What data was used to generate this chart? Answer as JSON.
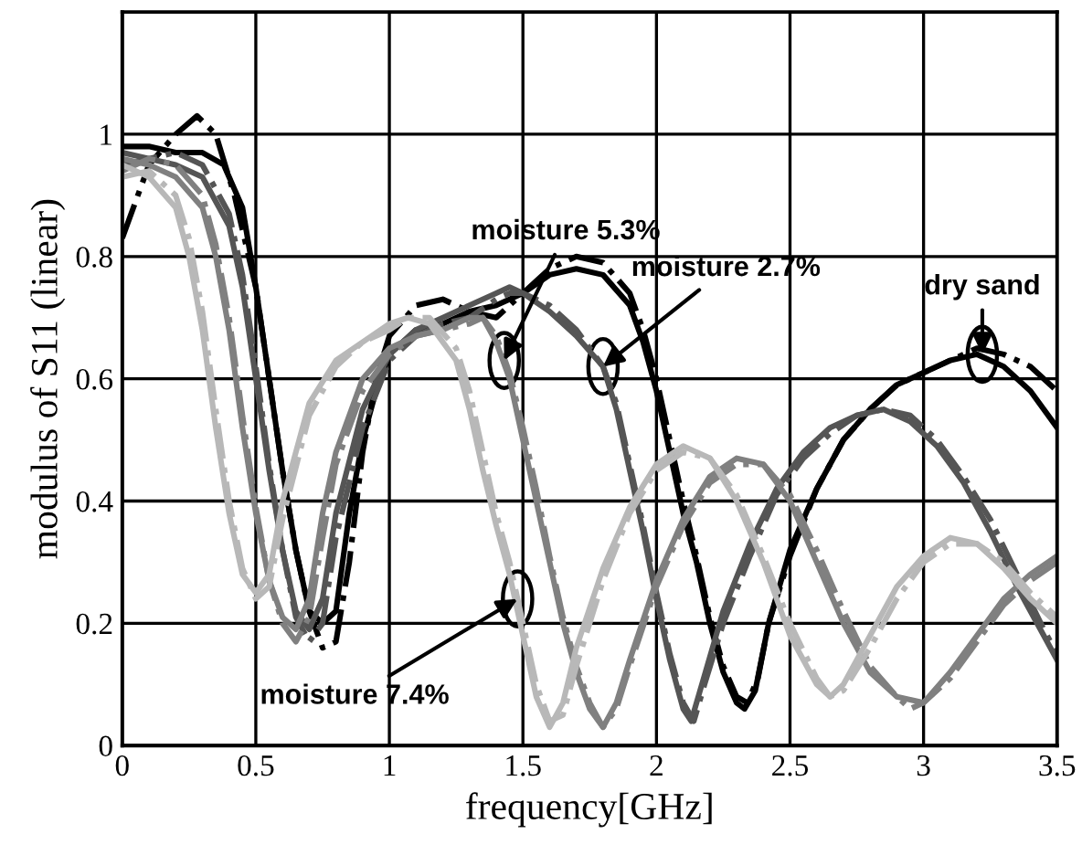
{
  "chart_data": {
    "type": "line",
    "xlabel": "frequency[GHz]",
    "ylabel": "modulus of S11 (linear)",
    "xlim": [
      0,
      3.5
    ],
    "xticks": [
      0,
      0.5,
      1,
      1.5,
      2,
      2.5,
      3,
      3.5
    ],
    "ylim": [
      0,
      1.2
    ],
    "yticks": [
      0,
      0.2,
      0.4,
      0.6,
      0.8,
      1
    ],
    "grid": true,
    "marker": "none",
    "series": [
      {
        "color": "#000000",
        "line_style": "solid",
        "x": [
          0,
          0.1,
          0.2,
          0.3,
          0.38,
          0.45,
          0.5,
          0.55,
          0.6,
          0.65,
          0.7,
          0.75,
          0.8,
          0.85,
          0.9,
          0.95,
          1.0,
          1.1,
          1.2,
          1.3,
          1.4,
          1.5,
          1.6,
          1.7,
          1.8,
          1.9,
          1.95,
          2.0,
          2.05,
          2.1,
          2.15,
          2.2,
          2.25,
          2.3,
          2.33,
          2.37,
          2.42,
          2.5,
          2.6,
          2.7,
          2.8,
          2.9,
          3.0,
          3.1,
          3.2,
          3.3,
          3.4,
          3.5
        ],
        "values": [
          0.98,
          0.98,
          0.97,
          0.97,
          0.95,
          0.88,
          0.75,
          0.6,
          0.45,
          0.32,
          0.22,
          0.2,
          0.22,
          0.38,
          0.5,
          0.58,
          0.64,
          0.68,
          0.69,
          0.71,
          0.72,
          0.74,
          0.77,
          0.78,
          0.77,
          0.72,
          0.66,
          0.58,
          0.48,
          0.38,
          0.3,
          0.2,
          0.12,
          0.07,
          0.06,
          0.09,
          0.2,
          0.32,
          0.42,
          0.5,
          0.55,
          0.59,
          0.61,
          0.63,
          0.64,
          0.62,
          0.58,
          0.52
        ]
      },
      {
        "color": "#000000",
        "line_style": "dashed",
        "x": [
          0,
          0.1,
          0.2,
          0.28,
          0.35,
          0.42,
          0.5,
          0.55,
          0.6,
          0.65,
          0.7,
          0.75,
          0.8,
          0.85,
          0.9,
          0.95,
          1.0,
          1.1,
          1.2,
          1.3,
          1.4,
          1.5,
          1.6,
          1.7,
          1.8,
          1.9,
          1.95,
          2.0,
          2.05,
          2.1,
          2.15,
          2.2,
          2.25,
          2.3,
          2.34,
          2.38,
          2.42,
          2.5,
          2.6,
          2.7,
          2.8,
          2.9,
          3.0,
          3.1,
          3.2,
          3.3,
          3.4,
          3.5
        ],
        "values": [
          0.83,
          0.95,
          1.0,
          1.03,
          1.0,
          0.9,
          0.75,
          0.6,
          0.45,
          0.32,
          0.22,
          0.16,
          0.17,
          0.3,
          0.48,
          0.6,
          0.67,
          0.72,
          0.73,
          0.71,
          0.7,
          0.74,
          0.78,
          0.8,
          0.79,
          0.74,
          0.68,
          0.6,
          0.5,
          0.4,
          0.31,
          0.21,
          0.13,
          0.08,
          0.07,
          0.11,
          0.2,
          0.31,
          0.42,
          0.5,
          0.55,
          0.59,
          0.61,
          0.63,
          0.65,
          0.64,
          0.62,
          0.58
        ]
      },
      {
        "color": "#555555",
        "line_style": "solid",
        "x": [
          0,
          0.1,
          0.2,
          0.3,
          0.4,
          0.45,
          0.5,
          0.55,
          0.6,
          0.65,
          0.7,
          0.75,
          0.8,
          0.9,
          1.0,
          1.1,
          1.2,
          1.3,
          1.4,
          1.45,
          1.5,
          1.6,
          1.7,
          1.8,
          1.85,
          1.9,
          1.95,
          2.0,
          2.05,
          2.1,
          2.13,
          2.17,
          2.25,
          2.35,
          2.45,
          2.55,
          2.65,
          2.75,
          2.85,
          2.95,
          3.05,
          3.15,
          3.25,
          3.35,
          3.45,
          3.5
        ],
        "values": [
          0.97,
          0.96,
          0.95,
          0.93,
          0.85,
          0.75,
          0.6,
          0.45,
          0.32,
          0.22,
          0.19,
          0.24,
          0.38,
          0.55,
          0.64,
          0.68,
          0.7,
          0.72,
          0.74,
          0.75,
          0.74,
          0.71,
          0.67,
          0.62,
          0.55,
          0.45,
          0.35,
          0.24,
          0.14,
          0.06,
          0.04,
          0.1,
          0.22,
          0.33,
          0.42,
          0.48,
          0.52,
          0.54,
          0.55,
          0.53,
          0.49,
          0.43,
          0.35,
          0.26,
          0.18,
          0.14
        ]
      },
      {
        "color": "#555555",
        "line_style": "dashed",
        "x": [
          0,
          0.1,
          0.2,
          0.3,
          0.4,
          0.45,
          0.5,
          0.55,
          0.6,
          0.65,
          0.7,
          0.75,
          0.8,
          0.9,
          1.0,
          1.1,
          1.2,
          1.3,
          1.4,
          1.45,
          1.5,
          1.6,
          1.7,
          1.8,
          1.85,
          1.9,
          1.95,
          2.0,
          2.05,
          2.1,
          2.14,
          2.18,
          2.25,
          2.35,
          2.45,
          2.55,
          2.65,
          2.75,
          2.85,
          2.95,
          3.05,
          3.15,
          3.25,
          3.35,
          3.45,
          3.5
        ],
        "values": [
          0.95,
          0.96,
          0.97,
          0.95,
          0.87,
          0.77,
          0.62,
          0.46,
          0.32,
          0.21,
          0.17,
          0.2,
          0.34,
          0.52,
          0.63,
          0.67,
          0.69,
          0.7,
          0.73,
          0.74,
          0.74,
          0.72,
          0.68,
          0.62,
          0.56,
          0.46,
          0.36,
          0.25,
          0.15,
          0.07,
          0.04,
          0.1,
          0.2,
          0.31,
          0.41,
          0.47,
          0.51,
          0.54,
          0.55,
          0.54,
          0.5,
          0.44,
          0.37,
          0.28,
          0.19,
          0.15
        ]
      },
      {
        "color": "#808080",
        "line_style": "solid",
        "x": [
          0,
          0.1,
          0.2,
          0.3,
          0.35,
          0.4,
          0.45,
          0.5,
          0.55,
          0.6,
          0.65,
          0.7,
          0.75,
          0.8,
          0.9,
          1.0,
          1.1,
          1.2,
          1.3,
          1.35,
          1.4,
          1.45,
          1.5,
          1.55,
          1.6,
          1.65,
          1.7,
          1.75,
          1.8,
          1.85,
          1.9,
          2.0,
          2.1,
          2.2,
          2.3,
          2.4,
          2.5,
          2.6,
          2.7,
          2.8,
          2.9,
          3.0,
          3.1,
          3.2,
          3.3,
          3.4,
          3.5
        ],
        "values": [
          0.96,
          0.95,
          0.93,
          0.88,
          0.8,
          0.68,
          0.52,
          0.38,
          0.27,
          0.21,
          0.19,
          0.24,
          0.38,
          0.48,
          0.6,
          0.65,
          0.67,
          0.68,
          0.7,
          0.7,
          0.66,
          0.6,
          0.5,
          0.4,
          0.3,
          0.2,
          0.12,
          0.06,
          0.03,
          0.07,
          0.14,
          0.27,
          0.37,
          0.44,
          0.47,
          0.46,
          0.4,
          0.3,
          0.2,
          0.12,
          0.08,
          0.07,
          0.12,
          0.18,
          0.24,
          0.28,
          0.31
        ]
      },
      {
        "color": "#808080",
        "line_style": "dashed",
        "x": [
          0,
          0.1,
          0.2,
          0.3,
          0.35,
          0.4,
          0.45,
          0.5,
          0.55,
          0.6,
          0.65,
          0.7,
          0.75,
          0.8,
          0.9,
          1.0,
          1.1,
          1.2,
          1.3,
          1.35,
          1.4,
          1.45,
          1.5,
          1.55,
          1.6,
          1.65,
          1.7,
          1.75,
          1.8,
          1.85,
          1.9,
          2.0,
          2.1,
          2.2,
          2.3,
          2.4,
          2.5,
          2.6,
          2.7,
          2.8,
          2.9,
          2.95,
          3.0,
          3.1,
          3.2,
          3.3,
          3.4,
          3.5
        ],
        "values": [
          0.94,
          0.96,
          0.95,
          0.9,
          0.82,
          0.7,
          0.54,
          0.39,
          0.27,
          0.2,
          0.17,
          0.21,
          0.34,
          0.46,
          0.58,
          0.64,
          0.67,
          0.68,
          0.69,
          0.7,
          0.67,
          0.61,
          0.52,
          0.42,
          0.31,
          0.21,
          0.13,
          0.07,
          0.03,
          0.06,
          0.13,
          0.26,
          0.36,
          0.43,
          0.46,
          0.46,
          0.41,
          0.32,
          0.22,
          0.13,
          0.08,
          0.06,
          0.07,
          0.11,
          0.17,
          0.23,
          0.27,
          0.3
        ]
      },
      {
        "color": "#b8b8b8",
        "line_style": "solid",
        "x": [
          0,
          0.1,
          0.2,
          0.25,
          0.3,
          0.35,
          0.4,
          0.45,
          0.5,
          0.55,
          0.6,
          0.7,
          0.8,
          0.9,
          1.0,
          1.07,
          1.15,
          1.25,
          1.3,
          1.35,
          1.4,
          1.45,
          1.5,
          1.55,
          1.6,
          1.65,
          1.7,
          1.8,
          1.9,
          2.0,
          2.1,
          2.2,
          2.3,
          2.4,
          2.5,
          2.6,
          2.65,
          2.7,
          2.8,
          2.9,
          3.0,
          3.1,
          3.2,
          3.3,
          3.4,
          3.5
        ],
        "values": [
          0.95,
          0.93,
          0.88,
          0.8,
          0.68,
          0.52,
          0.38,
          0.28,
          0.25,
          0.28,
          0.4,
          0.56,
          0.63,
          0.66,
          0.69,
          0.7,
          0.69,
          0.63,
          0.55,
          0.45,
          0.36,
          0.28,
          0.18,
          0.08,
          0.03,
          0.07,
          0.16,
          0.29,
          0.39,
          0.46,
          0.49,
          0.47,
          0.4,
          0.3,
          0.18,
          0.1,
          0.08,
          0.1,
          0.18,
          0.26,
          0.31,
          0.34,
          0.33,
          0.29,
          0.24,
          0.2
        ]
      },
      {
        "color": "#b8b8b8",
        "line_style": "dashed",
        "x": [
          0,
          0.1,
          0.2,
          0.25,
          0.3,
          0.35,
          0.4,
          0.45,
          0.5,
          0.55,
          0.6,
          0.7,
          0.8,
          0.9,
          1.0,
          1.07,
          1.15,
          1.25,
          1.3,
          1.35,
          1.4,
          1.45,
          1.5,
          1.55,
          1.6,
          1.65,
          1.7,
          1.8,
          1.9,
          2.0,
          2.1,
          2.2,
          2.3,
          2.4,
          2.5,
          2.6,
          2.65,
          2.7,
          2.8,
          2.9,
          3.0,
          3.1,
          3.2,
          3.3,
          3.4,
          3.5
        ],
        "values": [
          0.93,
          0.94,
          0.9,
          0.83,
          0.71,
          0.55,
          0.4,
          0.29,
          0.24,
          0.26,
          0.37,
          0.54,
          0.62,
          0.66,
          0.68,
          0.7,
          0.7,
          0.65,
          0.58,
          0.48,
          0.38,
          0.3,
          0.2,
          0.1,
          0.04,
          0.05,
          0.13,
          0.27,
          0.38,
          0.45,
          0.48,
          0.47,
          0.41,
          0.31,
          0.2,
          0.11,
          0.08,
          0.09,
          0.16,
          0.24,
          0.3,
          0.33,
          0.33,
          0.3,
          0.25,
          0.21
        ]
      }
    ],
    "annotations": [
      {
        "text": "moisture 5.3%",
        "x": 1.43,
        "y": 0.63
      },
      {
        "text": "moisture 2.7%",
        "x": 1.8,
        "y": 0.62
      },
      {
        "text": "dry sand",
        "x": 3.22,
        "y": 0.64
      },
      {
        "text": "moisture 7.4%",
        "x": 1.48,
        "y": 0.24
      }
    ]
  }
}
